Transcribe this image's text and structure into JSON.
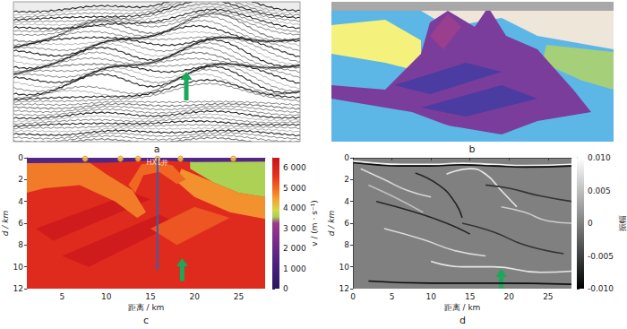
{
  "panels": [
    {
      "label": "a"
    },
    {
      "label": "b"
    }
  ],
  "chart_data": [
    {
      "type": "velocity_model",
      "label": "c",
      "xlabel": "距离 / km",
      "ylabel": "d / km",
      "xlim": [
        1,
        28
      ],
      "xticks": [
        5,
        10,
        15,
        20,
        25
      ],
      "ylim": [
        0,
        12
      ],
      "yticks": [
        0,
        2,
        4,
        6,
        8,
        10,
        12
      ],
      "colorbar": {
        "label": "v / (m · s⁻¹)",
        "range": [
          0,
          6500
        ],
        "ticks": [
          0,
          {
            "value": 1000,
            "label": "1 000"
          },
          {
            "value": 2000,
            "label": "2 000"
          },
          {
            "value": 3000,
            "label": "3 000"
          },
          {
            "value": 4000,
            "label": "4 000"
          },
          {
            "value": 5000,
            "label": "5 000"
          },
          {
            "value": 6000,
            "label": "6 000"
          }
        ]
      },
      "layers": [
        {
          "v": 5800,
          "polygon": [
            [
              1,
              0
            ],
            [
              28,
              0
            ],
            [
              28,
              12
            ],
            [
              1,
              12
            ]
          ]
        },
        {
          "v": 6300,
          "polygon": [
            [
              2,
              6.5
            ],
            [
              13,
              3.2
            ],
            [
              15,
              3.8
            ],
            [
              4,
              7.6
            ]
          ]
        },
        {
          "v": 6300,
          "polygon": [
            [
              5,
              9
            ],
            [
              16,
              5.2
            ],
            [
              18,
              6
            ],
            [
              8,
              10
            ]
          ]
        },
        {
          "v": 5200,
          "polygon": [
            [
              15,
              6.5
            ],
            [
              20,
              4.5
            ],
            [
              24,
              5.5
            ],
            [
              18,
              8
            ]
          ]
        },
        {
          "v": 4800,
          "polygon": [
            [
              1,
              0.4
            ],
            [
              8,
              0.4
            ],
            [
              10,
              1.5
            ],
            [
              13,
              3
            ],
            [
              14.5,
              5
            ],
            [
              13.5,
              5.5
            ],
            [
              11,
              4
            ],
            [
              7,
              2.5
            ],
            [
              3,
              2.8
            ],
            [
              1,
              3.2
            ]
          ]
        },
        {
          "v": 4600,
          "polygon": [
            [
              18.5,
              1
            ],
            [
              22,
              2.2
            ],
            [
              25,
              3.2
            ],
            [
              28,
              3.6
            ],
            [
              28,
              5.6
            ],
            [
              24,
              5
            ],
            [
              20,
              3.6
            ],
            [
              18,
              2.2
            ]
          ]
        },
        {
          "v": 3600,
          "polygon": [
            [
              19.5,
              0.3
            ],
            [
              28,
              0.3
            ],
            [
              28,
              3.6
            ],
            [
              25,
              3.2
            ],
            [
              22,
              2.2
            ],
            [
              19.5,
              1
            ]
          ]
        },
        {
          "v": 5000,
          "polygon": [
            [
              12.5,
              2.5
            ],
            [
              14,
              0.6
            ],
            [
              16,
              0.4
            ],
            [
              17.5,
              0.7
            ],
            [
              19,
              2
            ],
            [
              18,
              2.4
            ],
            [
              16,
              1.3
            ],
            [
              14.2,
              1.6
            ],
            [
              13.3,
              3.2
            ]
          ]
        },
        {
          "v": 1500,
          "polygon": [
            [
              1,
              0
            ],
            [
              28,
              0
            ],
            [
              28,
              0.35
            ],
            [
              20,
              0.4
            ],
            [
              15.8,
              0.25
            ],
            [
              10,
              0.45
            ],
            [
              1,
              0.5
            ]
          ]
        }
      ],
      "well": {
        "name": "HX1井",
        "x": 15.8,
        "d": [
          0,
          10.3
        ],
        "color": "#3b5cb0"
      },
      "stations": {
        "x": [
          7.6,
          11.6,
          13.6,
          15.8,
          18.4,
          24.4
        ],
        "d": 0.1,
        "color": "#f2d64b"
      },
      "arrow": {
        "x": 18.6,
        "d": [
          11.3,
          9.2
        ],
        "color": "#1aa85a"
      }
    },
    {
      "type": "synthetic_seismogram",
      "label": "d",
      "xlabel": "距离 / km",
      "ylabel": "d / km",
      "xlim": [
        0,
        28
      ],
      "xticks": [
        0,
        5,
        10,
        15,
        20,
        25
      ],
      "ylim": [
        0,
        12
      ],
      "yticks": [
        0,
        2,
        4,
        6,
        8,
        10,
        12
      ],
      "colorbar": {
        "label": "振幅",
        "range": [
          -0.01,
          0.01
        ],
        "ticks": [
          {
            "value": -0.01,
            "label": "-0.010"
          },
          {
            "value": -0.005,
            "label": "-0.005"
          },
          0,
          {
            "value": 0.005,
            "label": "0.005"
          },
          {
            "value": 0.01,
            "label": "0.010"
          }
        ]
      },
      "reflectors": [
        {
          "amplitude": 0.009,
          "points": [
            [
              0,
              0.3
            ],
            [
              3,
              0.5
            ],
            [
              6,
              0.6
            ],
            [
              10,
              0.6
            ],
            [
              14,
              0.5
            ],
            [
              18,
              0.6
            ],
            [
              22,
              0.7
            ],
            [
              28,
              0.6
            ]
          ]
        },
        {
          "amplitude": -0.009,
          "points": [
            [
              0,
              0.45
            ],
            [
              3,
              0.65
            ],
            [
              6,
              0.75
            ],
            [
              10,
              0.75
            ],
            [
              14,
              0.65
            ],
            [
              18,
              0.75
            ],
            [
              22,
              0.85
            ],
            [
              28,
              0.75
            ]
          ]
        },
        {
          "amplitude": 0.007,
          "points": [
            [
              1,
              1
            ],
            [
              4,
              2
            ],
            [
              7,
              3
            ],
            [
              10,
              3.6
            ]
          ]
        },
        {
          "amplitude": -0.007,
          "points": [
            [
              8,
              1.4
            ],
            [
              11,
              2.5
            ],
            [
              13,
              4
            ],
            [
              14,
              5.5
            ]
          ]
        },
        {
          "amplitude": 0.008,
          "points": [
            [
              12,
              1.5
            ],
            [
              15,
              1
            ],
            [
              17,
              1.5
            ],
            [
              19,
              3
            ],
            [
              21,
              4.5
            ]
          ]
        },
        {
          "amplitude": -0.006,
          "points": [
            [
              17,
              2.5
            ],
            [
              20,
              2.8
            ],
            [
              24,
              3.5
            ],
            [
              28,
              4
            ]
          ]
        },
        {
          "amplitude": 0.006,
          "points": [
            [
              19,
              4.5
            ],
            [
              22,
              5
            ],
            [
              25,
              5.8
            ],
            [
              28,
              6
            ]
          ]
        },
        {
          "amplitude": -0.007,
          "points": [
            [
              3,
              4
            ],
            [
              8,
              5
            ],
            [
              12,
              6
            ],
            [
              15,
              7
            ]
          ]
        },
        {
          "amplitude": 0.007,
          "points": [
            [
              4,
              6.5
            ],
            [
              9,
              7.5
            ],
            [
              13,
              8.5
            ],
            [
              17,
              9
            ]
          ]
        },
        {
          "amplitude": -0.006,
          "points": [
            [
              14,
              6
            ],
            [
              18,
              6.8
            ],
            [
              22,
              8
            ],
            [
              27,
              8.8
            ]
          ]
        },
        {
          "amplitude": 0.008,
          "points": [
            [
              10,
              9.5
            ],
            [
              14,
              10
            ],
            [
              18,
              10
            ],
            [
              24,
              10.5
            ],
            [
              28,
              10.4
            ]
          ]
        },
        {
          "amplitude": -0.009,
          "points": [
            [
              2,
              11.3
            ],
            [
              10,
              11.5
            ],
            [
              18,
              11.5
            ],
            [
              28,
              11.6
            ]
          ]
        },
        {
          "amplitude": 0.005,
          "points": [
            [
              2,
              2.5
            ],
            [
              5,
              3.5
            ],
            [
              9,
              5
            ]
          ]
        }
      ],
      "arrow": {
        "x": 19,
        "d": [
          12,
          10.2
        ],
        "color": "#1aa85a"
      }
    }
  ]
}
